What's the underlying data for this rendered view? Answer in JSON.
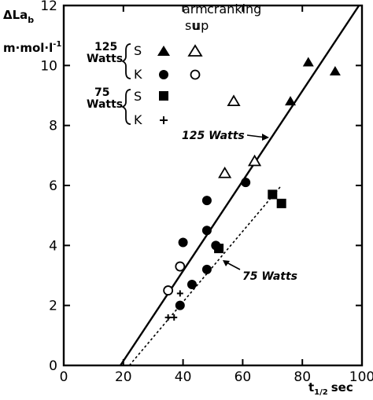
{
  "chart_data": {
    "type": "scatter",
    "ylabel_line1": "ΔLa",
    "ylabel_sub": "b",
    "ylabel_line2": "m·mol·l",
    "ylabel_sup": "-1",
    "xlabel_prefix": "t",
    "xlabel_sub": "1/2",
    "xlabel_suffix": "sec",
    "xlim": [
      0,
      100
    ],
    "ylim": [
      0,
      12
    ],
    "x_ticks": [
      0,
      20,
      40,
      60,
      80,
      100
    ],
    "y_ticks": [
      0,
      2,
      4,
      6,
      8,
      10,
      12
    ],
    "legend": {
      "header": [
        "arm",
        "cranking"
      ],
      "subheader": [
        "su",
        "up"
      ],
      "groups": [
        {
          "label_line1": "125",
          "label_line2": "Watts",
          "rows": [
            "S",
            "K"
          ]
        },
        {
          "label_line1": "75",
          "label_line2": "Watts",
          "rows": [
            "S",
            "K"
          ]
        }
      ]
    },
    "series": [
      {
        "name": "125 Watts S su",
        "marker": "triangle-filled",
        "points": [
          [
            76,
            8.8
          ],
          [
            82,
            10.1
          ],
          [
            91,
            9.8
          ]
        ]
      },
      {
        "name": "125 Watts S up",
        "marker": "triangle-open",
        "points": [
          [
            54,
            6.4
          ],
          [
            57,
            8.8
          ],
          [
            64,
            6.8
          ]
        ]
      },
      {
        "name": "125 Watts K su",
        "marker": "circle-filled",
        "points": [
          [
            39,
            2.0
          ],
          [
            40,
            4.1
          ],
          [
            43,
            2.7
          ],
          [
            48,
            3.2
          ],
          [
            48,
            4.5
          ],
          [
            48,
            5.5
          ],
          [
            51,
            4.0
          ],
          [
            61,
            6.1
          ]
        ]
      },
      {
        "name": "125 Watts K up",
        "marker": "circle-open",
        "points": [
          [
            35,
            2.5
          ],
          [
            39,
            3.3
          ]
        ]
      },
      {
        "name": "75 Watts S su",
        "marker": "square-filled",
        "points": [
          [
            52,
            3.9
          ],
          [
            70,
            5.7
          ],
          [
            73,
            5.4
          ]
        ]
      },
      {
        "name": "75 Watts K su",
        "marker": "plus",
        "points": [
          [
            35,
            1.6
          ],
          [
            37,
            1.6
          ],
          [
            39,
            2.4
          ]
        ]
      }
    ],
    "fit_lines": [
      {
        "label": "125 Watts",
        "style": "solid",
        "points": [
          [
            19,
            0
          ],
          [
            99,
            12
          ]
        ]
      },
      {
        "label": "75 Watts",
        "style": "dashed",
        "points": [
          [
            22,
            0
          ],
          [
            73,
            6.0
          ]
        ]
      }
    ]
  }
}
